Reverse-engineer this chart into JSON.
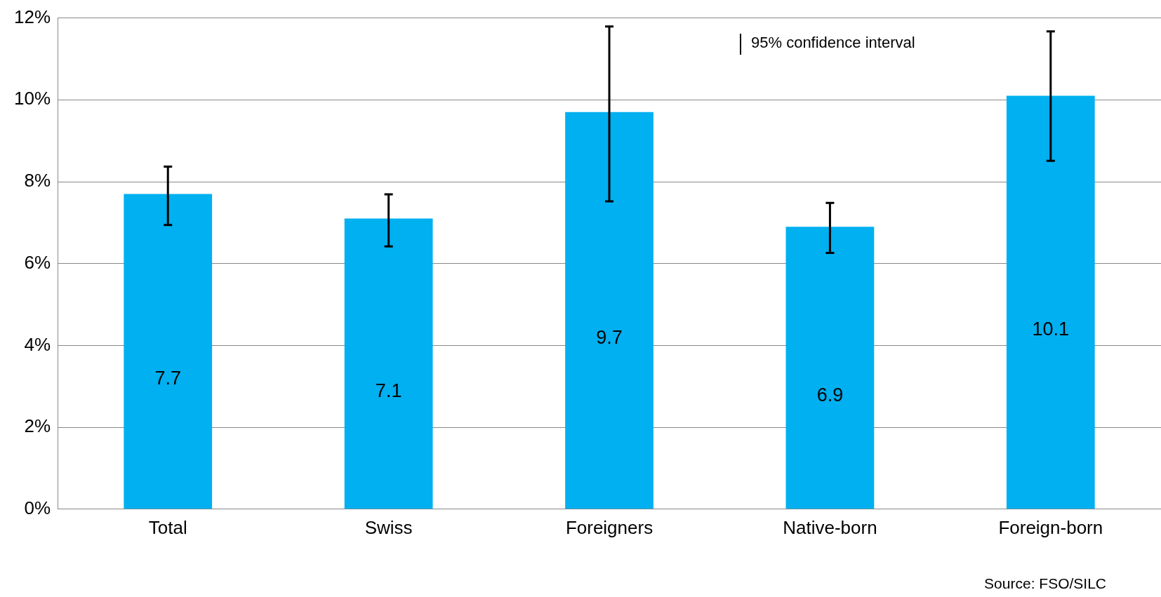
{
  "chart_data": {
    "type": "bar",
    "categories": [
      "Total",
      "Swiss",
      "Foreigners",
      "Native-born",
      "Foreign-born"
    ],
    "series": [
      {
        "color": "#00b0f0",
        "values": [
          7.7,
          7.1,
          9.7,
          6.9,
          10.1
        ],
        "errors": [
          [
            6.94,
            8.37
          ],
          [
            6.42,
            7.69
          ],
          [
            7.52,
            11.79
          ],
          [
            6.26,
            7.48
          ],
          [
            8.51,
            11.67
          ]
        ]
      }
    ],
    "ylim": [
      0,
      12
    ],
    "yticks": [
      {
        "value": 0,
        "label": "0%"
      },
      {
        "value": 2,
        "label": "2%"
      },
      {
        "value": 4,
        "label": "4%"
      },
      {
        "value": 6,
        "label": "6%"
      },
      {
        "value": 8,
        "label": "8%"
      },
      {
        "value": 10,
        "label": "10%"
      },
      {
        "value": 12,
        "label": "12%"
      }
    ],
    "grid": "y",
    "data_labels": true,
    "legend": false,
    "annotations": [
      "95% confidence interval",
      "Source: FSO/SILC"
    ]
  }
}
